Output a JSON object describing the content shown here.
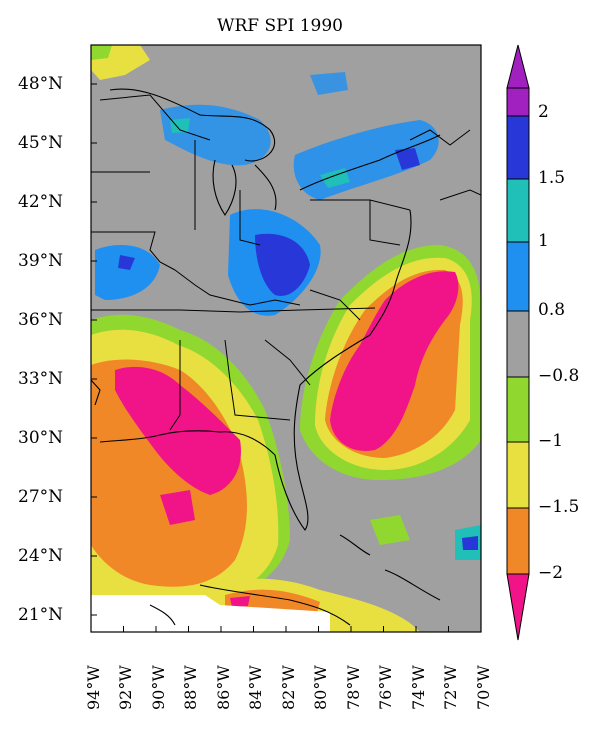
{
  "title": "WRF SPI 1990",
  "lat_labels": [
    "48°N",
    "45°N",
    "42°N",
    "39°N",
    "36°N",
    "33°N",
    "30°N",
    "27°N",
    "24°N",
    "21°N"
  ],
  "lon_labels": [
    "94°W",
    "92°W",
    "90°W",
    "88°W",
    "86°W",
    "84°W",
    "82°W",
    "80°W",
    "78°W",
    "76°W",
    "74°W",
    "72°W",
    "70°W"
  ],
  "colorbar": {
    "labels": [
      "2",
      "1.5",
      "1",
      "0.8",
      "−0.8",
      "−1",
      "−1.5",
      "−2"
    ],
    "colors": {
      "magenta_top": "#a020c0",
      "dark_blue": "#2838d8",
      "teal": "#20c0b8",
      "light_blue": "#2090f0",
      "gray": "#a0a0a0",
      "green": "#90d830",
      "yellow": "#e8e040",
      "orange": "#f08828",
      "pink": "#f01488"
    }
  }
}
